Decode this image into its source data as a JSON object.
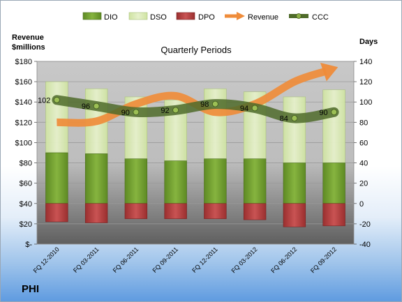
{
  "chart_data": {
    "type": "bar",
    "title": "Quarterly Periods",
    "company": "PHI",
    "left_axis_title_line1": "Revenue",
    "left_axis_title_line2": "$millions",
    "right_axis_title": "Days",
    "categories": [
      "FQ 12-2010",
      "FQ 03-2011",
      "FQ 06-2011",
      "FQ 09-2011",
      "FQ 12-2011",
      "FQ 03-2012",
      "FQ 06-2012",
      "FQ 09-2012"
    ],
    "left_axis": {
      "ylim": [
        0,
        180
      ],
      "ticks": [
        "$-",
        "$20",
        "$40",
        "$60",
        "$80",
        "$100",
        "$120",
        "$140",
        "$160",
        "$180"
      ]
    },
    "right_axis": {
      "ylim": [
        -40,
        140
      ],
      "ticks": [
        "-40",
        "-20",
        "0",
        "20",
        "40",
        "60",
        "80",
        "100",
        "120",
        "140"
      ]
    },
    "series": [
      {
        "name": "DIO",
        "axis": "right",
        "kind": "stacked-bar",
        "color": "#6e9a2e",
        "values": [
          50,
          49,
          44,
          42,
          44,
          44,
          40,
          40
        ]
      },
      {
        "name": "DSO",
        "axis": "right",
        "kind": "stacked-bar",
        "color": "#d7e8b0",
        "values": [
          70,
          64,
          61,
          60,
          69,
          66,
          65,
          72
        ]
      },
      {
        "name": "DPO",
        "axis": "right",
        "kind": "negative-bar",
        "color": "#b23a3a",
        "values": [
          -18,
          -19,
          -15,
          -15,
          -15,
          -16,
          -23,
          -22
        ]
      },
      {
        "name": "Revenue",
        "axis": "left",
        "kind": "arrow-line",
        "color": "#ef8c3a",
        "values": [
          120,
          121,
          138,
          146,
          130,
          138,
          160,
          173
        ]
      },
      {
        "name": "CCC",
        "axis": "right",
        "kind": "line-markers",
        "color": "#4f6b2a",
        "values": [
          102,
          96,
          90,
          92,
          98,
          94,
          84,
          90
        ]
      }
    ],
    "ccc_labels": [
      "102",
      "96",
      "90",
      "92",
      "98",
      "94",
      "84",
      "90"
    ],
    "legend": {
      "position": "top",
      "items": [
        "DIO",
        "DSO",
        "DPO",
        "Revenue",
        "CCC"
      ]
    },
    "grid": true
  }
}
